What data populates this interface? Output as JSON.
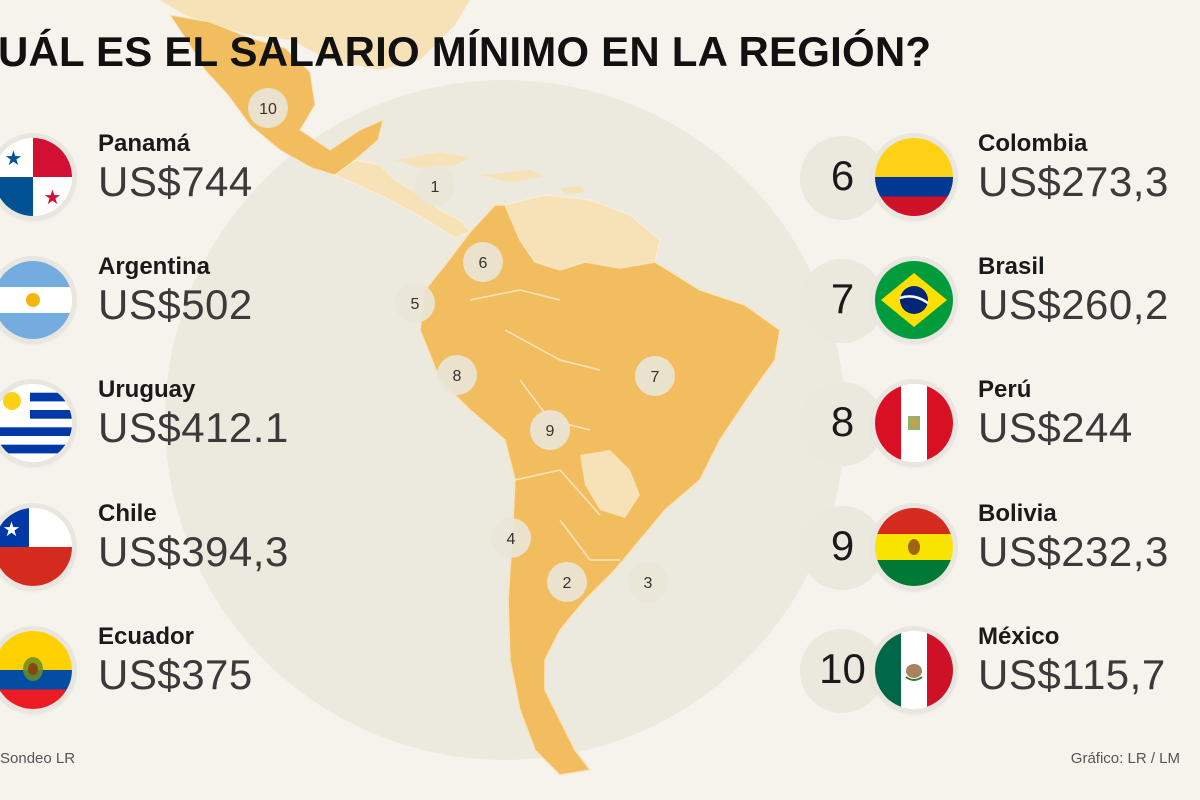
{
  "title": "UÁL ES EL SALARIO MÍNIMO EN LA REGIÓN?",
  "left_list": [
    {
      "country": "Panamá",
      "salary": "US$744",
      "flag": "panama-flag"
    },
    {
      "country": "Argentina",
      "salary": "US$502",
      "flag": "argentina-flag"
    },
    {
      "country": "Uruguay",
      "salary": "US$412.1",
      "flag": "uruguay-flag"
    },
    {
      "country": "Chile",
      "salary": "US$394,3",
      "flag": "chile-flag"
    },
    {
      "country": "Ecuador",
      "salary": "US$375",
      "flag": "ecuador-flag"
    }
  ],
  "right_list": [
    {
      "rank": "6",
      "country": "Colombia",
      "salary": "US$273,3",
      "flag": "colombia-flag"
    },
    {
      "rank": "7",
      "country": "Brasil",
      "salary": "US$260,2",
      "flag": "brazil-flag"
    },
    {
      "rank": "8",
      "country": "Perú",
      "salary": "US$244",
      "flag": "peru-flag"
    },
    {
      "rank": "9",
      "country": "Bolivia",
      "salary": "US$232,3",
      "flag": "bolivia-flag"
    },
    {
      "rank": "10",
      "country": "México",
      "salary": "US$115,7",
      "flag": "mexico-flag"
    }
  ],
  "map_markers": [
    "10",
    "1",
    "6",
    "5",
    "8",
    "7",
    "9",
    "4",
    "2",
    "3"
  ],
  "footer": {
    "source": "Sondeo LR",
    "credit": "Gráfico: LR / LM"
  },
  "colors": {
    "background": "#f5f3ec",
    "land_highlight": "#f2bd5e",
    "land_muted": "#f7e2b8",
    "marker": "#e9e5d7"
  }
}
